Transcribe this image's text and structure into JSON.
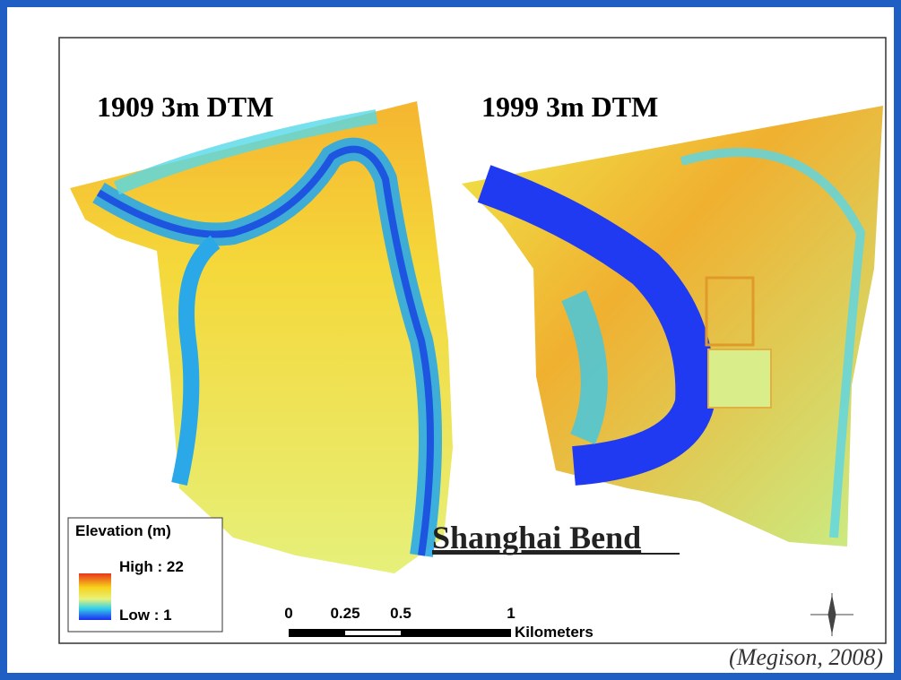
{
  "maps": [
    {
      "label": "1909 3m DTM"
    },
    {
      "label": "1999 3m DTM"
    }
  ],
  "title": "Shanghai Bend",
  "legend": {
    "title": "Elevation (m)",
    "high": "High : 22",
    "low": "Low : 1"
  },
  "scale_bar": {
    "ticks": [
      "0",
      "0.25",
      "0.5",
      "1"
    ],
    "unit": "Kilometers"
  },
  "citation": "(Megison, 2008)"
}
